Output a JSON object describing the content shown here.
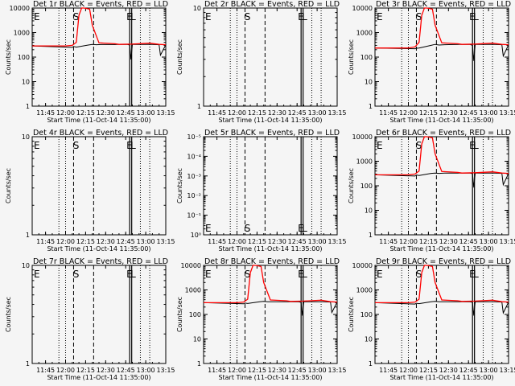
{
  "figure": {
    "ylabel": "Counts/sec",
    "xlabel": "Start Time (11-Oct-14 11:35:00)",
    "x_tick_labels": [
      "11:45",
      "12:00",
      "12:15",
      "12:30",
      "12:45",
      "13:00",
      "13:15"
    ],
    "events_color": "#000000",
    "lld_color": "#ff0000"
  },
  "chart_data": [
    {
      "type": "line",
      "title": "Det 1r BLACK = Events, RED = LLD",
      "yscale": "log",
      "ylim": [
        1,
        10000
      ],
      "ytick_labels": [
        "1",
        "10",
        "100",
        "1000",
        "10000"
      ],
      "markers": {
        "S": "12:08",
        "E": "11:35",
        "E2": "12:48",
        "L": "12:48"
      },
      "series": [
        {
          "name": "Events",
          "x_minutes": [
            0,
            30,
            31,
            33,
            42,
            45,
            48,
            52,
            62,
            65,
            71,
            73,
            74,
            75,
            90,
            95,
            96,
            100
          ],
          "values": [
            285,
            250,
            270,
            255,
            310,
            330,
            320,
            325,
            325,
            330,
            330,
            310,
            80,
            330,
            330,
            320,
            120,
            320
          ]
        },
        {
          "name": "LLD",
          "x_minutes": [
            0,
            25,
            30,
            33,
            35,
            37,
            39,
            43,
            45,
            50,
            62,
            65,
            75,
            88,
            95,
            100
          ],
          "values": [
            285,
            285,
            300,
            400,
            5000,
            11000,
            11000,
            9000,
            2000,
            380,
            350,
            330,
            340,
            370,
            330,
            320
          ]
        }
      ]
    },
    {
      "type": "line",
      "title": "Det 2r BLACK = Events, RED = LLD",
      "yscale": "log",
      "ylim": [
        1,
        10
      ],
      "ytick_labels": [
        "1",
        "10"
      ],
      "markers": {
        "S": "12:08",
        "E": "11:35",
        "E2": "12:48",
        "L": "12:48"
      },
      "series": []
    },
    {
      "type": "line",
      "title": "Det 3r BLACK = Events, RED = LLD",
      "yscale": "log",
      "ylim": [
        1,
        10000
      ],
      "ytick_labels": [
        "1",
        "10",
        "100",
        "1000",
        "10000"
      ],
      "markers": {
        "S": "12:08",
        "E": "11:35",
        "E2": "12:48",
        "L": "12:48"
      },
      "series": [
        {
          "name": "Events",
          "x_minutes": [
            0,
            30,
            31,
            33,
            42,
            45,
            48,
            52,
            62,
            65,
            71,
            73,
            74,
            75,
            90,
            95,
            96,
            100
          ],
          "values": [
            235,
            220,
            230,
            235,
            300,
            330,
            310,
            320,
            330,
            330,
            330,
            300,
            70,
            330,
            330,
            320,
            110,
            320
          ]
        },
        {
          "name": "LLD",
          "x_minutes": [
            0,
            25,
            30,
            33,
            35,
            37,
            39,
            43,
            45,
            50,
            62,
            65,
            75,
            88,
            95,
            100
          ],
          "values": [
            235,
            235,
            260,
            400,
            5000,
            11000,
            11000,
            9000,
            2000,
            380,
            350,
            330,
            340,
            370,
            330,
            320
          ]
        }
      ]
    },
    {
      "type": "line",
      "title": "Det 4r BLACK = Events, RED = LLD",
      "yscale": "log",
      "ylim": [
        1,
        10
      ],
      "ytick_labels": [
        "1",
        "10"
      ],
      "markers": {
        "S": "12:08",
        "E": "11:35",
        "E2": "12:48",
        "L": "12:48"
      },
      "series": []
    },
    {
      "type": "line",
      "title": "Det 5r BLACK = Events, RED = LLD",
      "yscale": "log",
      "ylim": [
        1,
        1e-05
      ],
      "ytick_labels": [
        "10⁰",
        "10⁻¹",
        "10⁻²",
        "10⁻³",
        "10⁻⁴",
        "10⁻⁵"
      ],
      "markers": {
        "S": "12:08",
        "E": "11:35",
        "E2": "12:48",
        "L": "12:48"
      },
      "series": []
    },
    {
      "type": "line",
      "title": "Det 6r BLACK = Events, RED = LLD",
      "yscale": "log",
      "ylim": [
        1,
        10000
      ],
      "ytick_labels": [
        "1",
        "10",
        "100",
        "1000",
        "10000"
      ],
      "markers": {
        "S": "12:08",
        "E": "11:35",
        "E2": "12:48",
        "L": "12:48"
      },
      "series": [
        {
          "name": "Events",
          "x_minutes": [
            0,
            30,
            31,
            33,
            42,
            45,
            48,
            52,
            62,
            65,
            71,
            73,
            74,
            75,
            90,
            95,
            96,
            100
          ],
          "values": [
            280,
            250,
            275,
            260,
            320,
            330,
            320,
            330,
            330,
            330,
            330,
            310,
            85,
            330,
            330,
            320,
            110,
            320
          ]
        },
        {
          "name": "LLD",
          "x_minutes": [
            0,
            25,
            30,
            33,
            35,
            37,
            39,
            43,
            45,
            50,
            62,
            65,
            75,
            88,
            95,
            100
          ],
          "values": [
            280,
            280,
            300,
            400,
            5000,
            11000,
            11000,
            9000,
            2000,
            380,
            350,
            330,
            340,
            370,
            330,
            320
          ]
        }
      ]
    },
    {
      "type": "line",
      "title": "Det 7r BLACK = Events, RED = LLD",
      "yscale": "log",
      "ylim": [
        1,
        10
      ],
      "ytick_labels": [
        "1",
        "10"
      ],
      "markers": {
        "S": "12:08",
        "E": "11:35",
        "E2": "12:48",
        "L": "12:48"
      },
      "series": []
    },
    {
      "type": "line",
      "title": "Det 8r BLACK = Events, RED = LLD",
      "yscale": "log",
      "ylim": [
        1,
        10000
      ],
      "ytick_labels": [
        "1",
        "10",
        "100",
        "1000",
        "10000"
      ],
      "markers": {
        "S": "12:08",
        "E": "11:35",
        "E2": "12:48",
        "L": "12:48"
      },
      "series": [
        {
          "name": "Events",
          "x_minutes": [
            0,
            30,
            31,
            33,
            42,
            45,
            48,
            52,
            62,
            65,
            71,
            73,
            74,
            75,
            90,
            95,
            96,
            100
          ],
          "values": [
            300,
            270,
            290,
            280,
            330,
            340,
            330,
            330,
            330,
            330,
            330,
            310,
            90,
            330,
            330,
            320,
            120,
            320
          ]
        },
        {
          "name": "LLD",
          "x_minutes": [
            0,
            25,
            30,
            33,
            35,
            37,
            39,
            43,
            45,
            50,
            62,
            65,
            75,
            88,
            95,
            100
          ],
          "values": [
            300,
            300,
            320,
            420,
            5000,
            11000,
            11000,
            9000,
            2000,
            390,
            360,
            340,
            350,
            380,
            330,
            320
          ]
        }
      ]
    },
    {
      "type": "line",
      "title": "Det 9r BLACK = Events, RED = LLD",
      "yscale": "log",
      "ylim": [
        1,
        10000
      ],
      "ytick_labels": [
        "1",
        "10",
        "100",
        "1000",
        "10000"
      ],
      "markers": {
        "S": "12:08",
        "E": "11:35",
        "E2": "12:48",
        "L": "12:48"
      },
      "series": [
        {
          "name": "Events",
          "x_minutes": [
            0,
            30,
            31,
            33,
            42,
            45,
            48,
            52,
            62,
            65,
            71,
            73,
            74,
            75,
            90,
            95,
            96,
            100
          ],
          "values": [
            300,
            265,
            285,
            275,
            330,
            340,
            330,
            330,
            330,
            330,
            330,
            310,
            90,
            330,
            330,
            320,
            115,
            320
          ]
        },
        {
          "name": "LLD",
          "x_minutes": [
            0,
            25,
            30,
            33,
            35,
            37,
            39,
            43,
            45,
            50,
            62,
            65,
            75,
            88,
            95,
            100
          ],
          "values": [
            300,
            300,
            320,
            420,
            5000,
            11000,
            11000,
            9000,
            2000,
            390,
            360,
            340,
            350,
            380,
            330,
            320
          ]
        }
      ]
    }
  ]
}
